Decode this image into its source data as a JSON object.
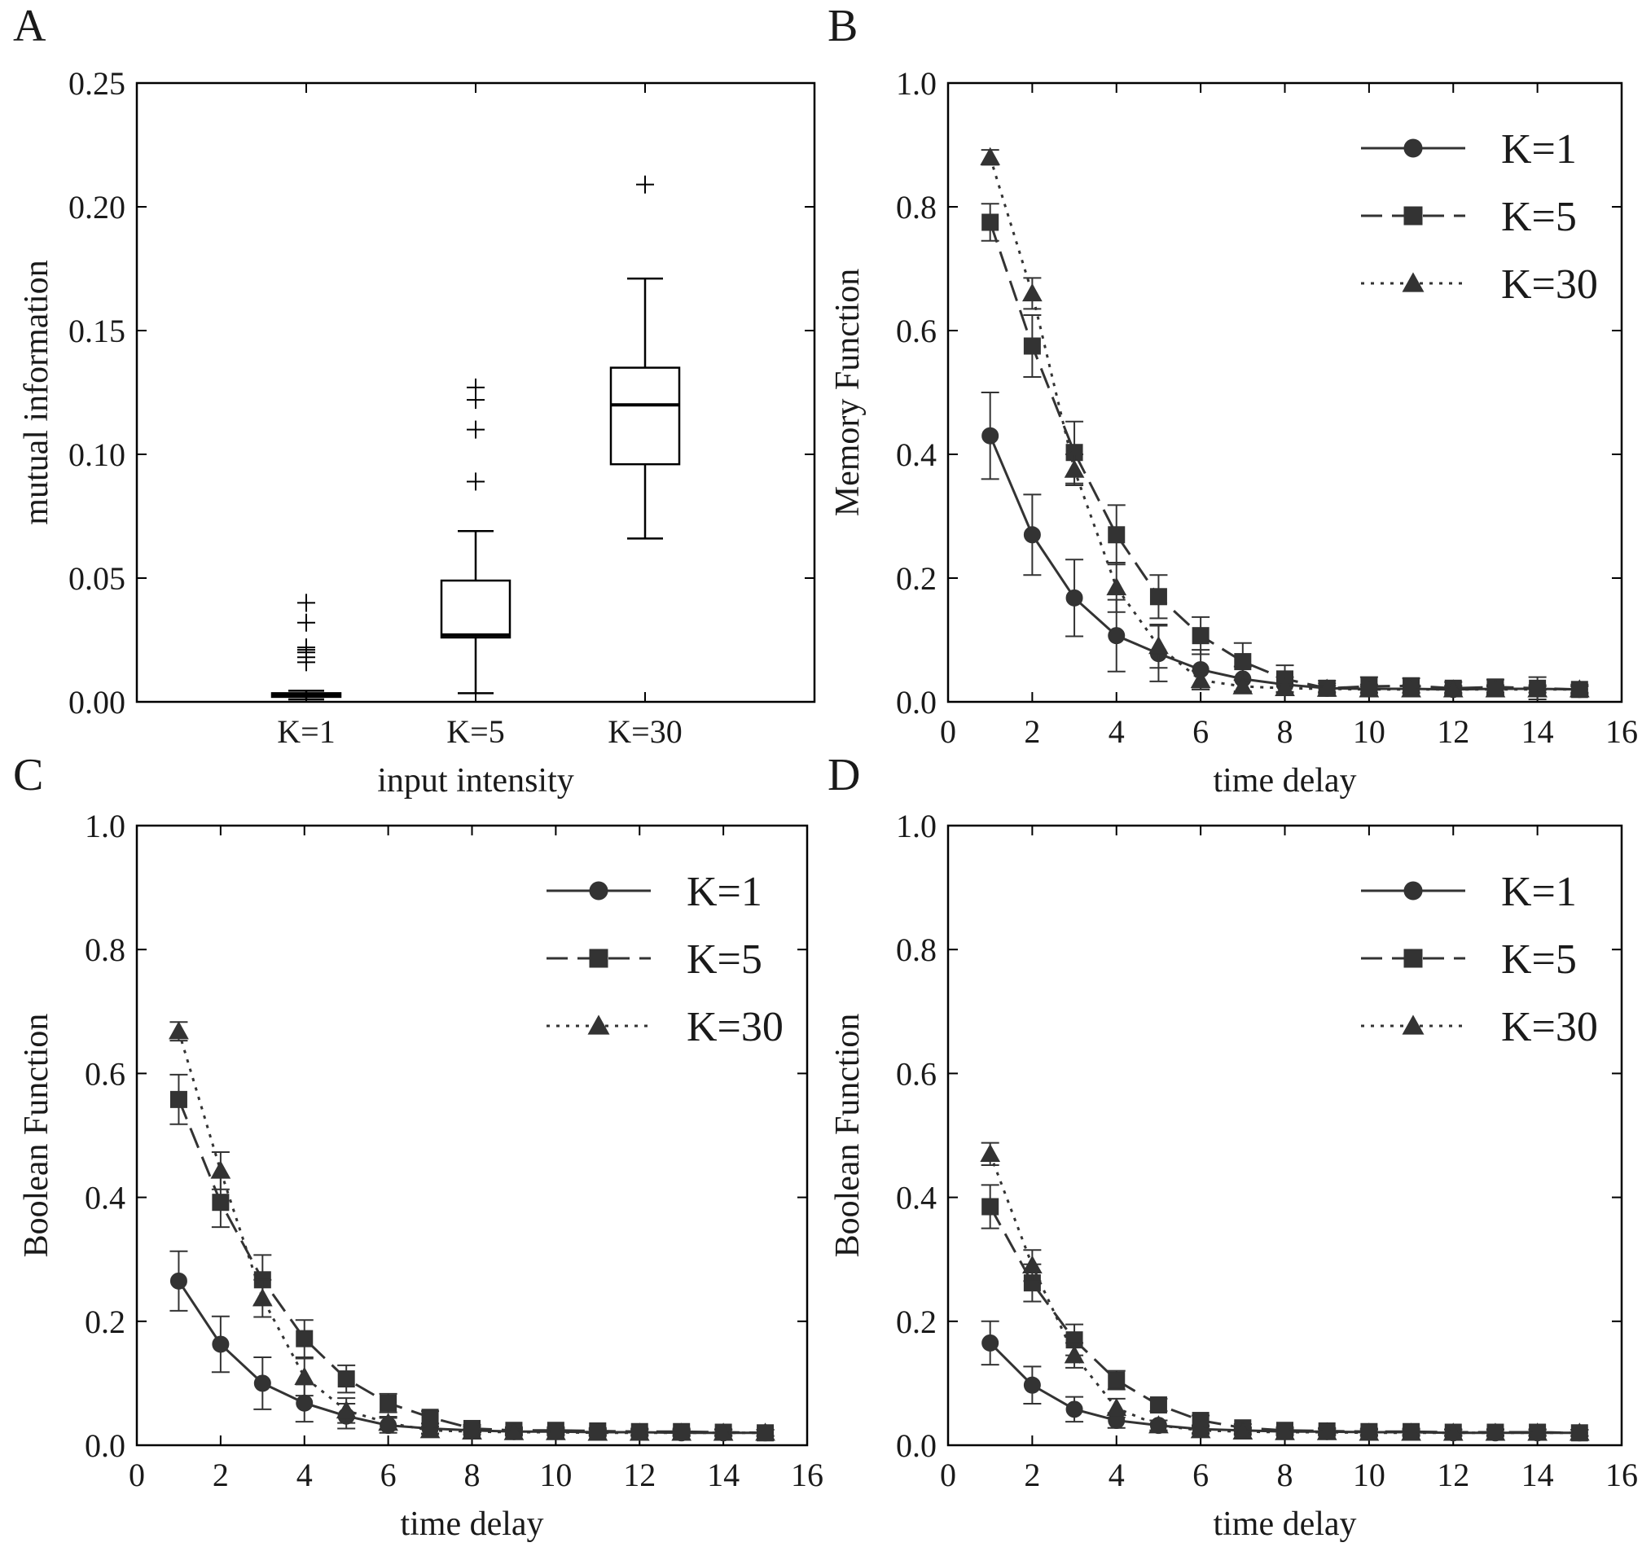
{
  "chart_data": [
    {
      "panel": "A",
      "type": "box",
      "xlabel": "input intensity",
      "ylabel": "mutual information",
      "categories": [
        "K=1",
        "K=5",
        "K=30"
      ],
      "ylim": [
        0,
        0.25
      ],
      "yticks": [
        "0.00",
        "0.05",
        "0.10",
        "0.15",
        "0.20",
        "0.25"
      ],
      "boxes": [
        {
          "whisker_low": 0.001,
          "q1": 0.002,
          "median": 0.0025,
          "q3": 0.0035,
          "whisker_high": 0.0045,
          "outliers": [
            0.04,
            0.032,
            0.022,
            0.021,
            0.02,
            0.018,
            0.016
          ]
        },
        {
          "whisker_low": 0.0035,
          "q1": 0.026,
          "median": 0.027,
          "q3": 0.049,
          "whisker_high": 0.069,
          "outliers": [
            0.089,
            0.11,
            0.122,
            0.127
          ]
        },
        {
          "whisker_low": 0.066,
          "q1": 0.096,
          "median": 0.12,
          "q3": 0.135,
          "whisker_high": 0.171,
          "outliers": [
            0.209
          ]
        }
      ]
    },
    {
      "panel": "B",
      "type": "line",
      "xlabel": "time delay",
      "ylabel": "Memory Function",
      "xlim": [
        0,
        16
      ],
      "ylim": [
        0,
        1.0
      ],
      "xticks": [
        "0",
        "2",
        "4",
        "6",
        "8",
        "10",
        "12",
        "14",
        "16"
      ],
      "yticks": [
        "0.0",
        "0.2",
        "0.4",
        "0.6",
        "0.8",
        "1.0"
      ],
      "legend_position": "top-right",
      "x": [
        1,
        2,
        3,
        4,
        5,
        6,
        7,
        8,
        9,
        10,
        11,
        12,
        13,
        14,
        15
      ],
      "series": [
        {
          "name": "K=1",
          "marker": "circle",
          "dash": "solid",
          "values": [
            0.43,
            0.27,
            0.168,
            0.107,
            0.078,
            0.052,
            0.037,
            0.028,
            0.022,
            0.021,
            0.021,
            0.02,
            0.021,
            0.021,
            0.02
          ],
          "errors": [
            0.07,
            0.065,
            0.062,
            0.058,
            0.045,
            0.032,
            0.02,
            0.012,
            0.008,
            0.007,
            0.006,
            0.006,
            0.006,
            0.006,
            0.006
          ]
        },
        {
          "name": "K=5",
          "marker": "square",
          "dash": "dashed",
          "values": [
            0.775,
            0.575,
            0.403,
            0.27,
            0.17,
            0.107,
            0.065,
            0.037,
            0.022,
            0.025,
            0.026,
            0.022,
            0.024,
            0.022,
            0.02
          ],
          "errors": [
            0.03,
            0.05,
            0.05,
            0.048,
            0.035,
            0.03,
            0.03,
            0.022,
            0.012,
            0.015,
            0.012,
            0.01,
            0.012,
            0.018,
            0.008
          ]
        },
        {
          "name": "K=30",
          "marker": "triangle",
          "dash": "dotted",
          "values": [
            0.88,
            0.66,
            0.375,
            0.185,
            0.09,
            0.035,
            0.025,
            0.022,
            0.021,
            0.02,
            0.02,
            0.02,
            0.02,
            0.02,
            0.02
          ],
          "errors": [
            0.012,
            0.025,
            0.025,
            0.04,
            0.035,
            0.015,
            0.01,
            0.006,
            0.005,
            0.005,
            0.005,
            0.005,
            0.005,
            0.005,
            0.005
          ]
        }
      ]
    },
    {
      "panel": "C",
      "type": "line",
      "xlabel": "time delay",
      "ylabel": "Boolean Function",
      "xlim": [
        0,
        16
      ],
      "ylim": [
        0,
        1.0
      ],
      "xticks": [
        "0",
        "2",
        "4",
        "6",
        "8",
        "10",
        "12",
        "14",
        "16"
      ],
      "yticks": [
        "0.0",
        "0.2",
        "0.4",
        "0.6",
        "0.8",
        "1.0"
      ],
      "legend_position": "top-right",
      "x": [
        1,
        2,
        3,
        4,
        5,
        6,
        7,
        8,
        9,
        10,
        11,
        12,
        13,
        14,
        15
      ],
      "series": [
        {
          "name": "K=1",
          "marker": "circle",
          "dash": "solid",
          "values": [
            0.265,
            0.163,
            0.1,
            0.068,
            0.047,
            0.032,
            0.027,
            0.024,
            0.022,
            0.022,
            0.021,
            0.021,
            0.02,
            0.02,
            0.02
          ],
          "errors": [
            0.048,
            0.045,
            0.042,
            0.03,
            0.02,
            0.012,
            0.008,
            0.006,
            0.005,
            0.005,
            0.005,
            0.005,
            0.005,
            0.005,
            0.005
          ]
        },
        {
          "name": "K=5",
          "marker": "square",
          "dash": "dashed",
          "values": [
            0.558,
            0.392,
            0.267,
            0.172,
            0.107,
            0.068,
            0.045,
            0.027,
            0.024,
            0.024,
            0.023,
            0.022,
            0.022,
            0.021,
            0.02
          ],
          "errors": [
            0.04,
            0.04,
            0.04,
            0.03,
            0.022,
            0.015,
            0.01,
            0.006,
            0.005,
            0.005,
            0.005,
            0.005,
            0.005,
            0.005,
            0.005
          ]
        },
        {
          "name": "K=30",
          "marker": "triangle",
          "dash": "dotted",
          "values": [
            0.668,
            0.443,
            0.237,
            0.11,
            0.056,
            0.036,
            0.024,
            0.022,
            0.021,
            0.021,
            0.02,
            0.02,
            0.02,
            0.02,
            0.02
          ],
          "errors": [
            0.015,
            0.03,
            0.03,
            0.03,
            0.02,
            0.01,
            0.006,
            0.005,
            0.005,
            0.005,
            0.005,
            0.005,
            0.005,
            0.005,
            0.005
          ]
        }
      ]
    },
    {
      "panel": "D",
      "type": "line",
      "xlabel": "time delay",
      "ylabel": "Boolean Function",
      "xlim": [
        0,
        16
      ],
      "ylim": [
        0,
        1.0
      ],
      "xticks": [
        "0",
        "2",
        "4",
        "6",
        "8",
        "10",
        "12",
        "14",
        "16"
      ],
      "yticks": [
        "0.0",
        "0.2",
        "0.4",
        "0.6",
        "0.8",
        "1.0"
      ],
      "legend_position": "top-right",
      "x": [
        1,
        2,
        3,
        4,
        5,
        6,
        7,
        8,
        9,
        10,
        11,
        12,
        13,
        14,
        15
      ],
      "series": [
        {
          "name": "K=1",
          "marker": "circle",
          "dash": "solid",
          "values": [
            0.165,
            0.097,
            0.058,
            0.04,
            0.032,
            0.026,
            0.024,
            0.022,
            0.022,
            0.021,
            0.021,
            0.02,
            0.02,
            0.02,
            0.02
          ],
          "errors": [
            0.035,
            0.03,
            0.02,
            0.012,
            0.008,
            0.006,
            0.005,
            0.005,
            0.005,
            0.005,
            0.005,
            0.005,
            0.005,
            0.005,
            0.005
          ]
        },
        {
          "name": "K=5",
          "marker": "square",
          "dash": "dashed",
          "values": [
            0.385,
            0.262,
            0.17,
            0.105,
            0.065,
            0.04,
            0.028,
            0.024,
            0.023,
            0.022,
            0.022,
            0.021,
            0.021,
            0.021,
            0.02
          ],
          "errors": [
            0.035,
            0.03,
            0.025,
            0.015,
            0.01,
            0.008,
            0.006,
            0.005,
            0.005,
            0.005,
            0.005,
            0.005,
            0.005,
            0.005,
            0.005
          ]
        },
        {
          "name": "K=30",
          "marker": "triangle",
          "dash": "dotted",
          "values": [
            0.47,
            0.29,
            0.145,
            0.06,
            0.032,
            0.024,
            0.022,
            0.021,
            0.021,
            0.02,
            0.02,
            0.02,
            0.02,
            0.02,
            0.02
          ],
          "errors": [
            0.018,
            0.025,
            0.02,
            0.015,
            0.008,
            0.006,
            0.005,
            0.005,
            0.005,
            0.005,
            0.005,
            0.005,
            0.005,
            0.005,
            0.005
          ]
        }
      ]
    }
  ],
  "colors": {
    "ink": "#333333",
    "frame": "#000000",
    "background": "#ffffff"
  }
}
